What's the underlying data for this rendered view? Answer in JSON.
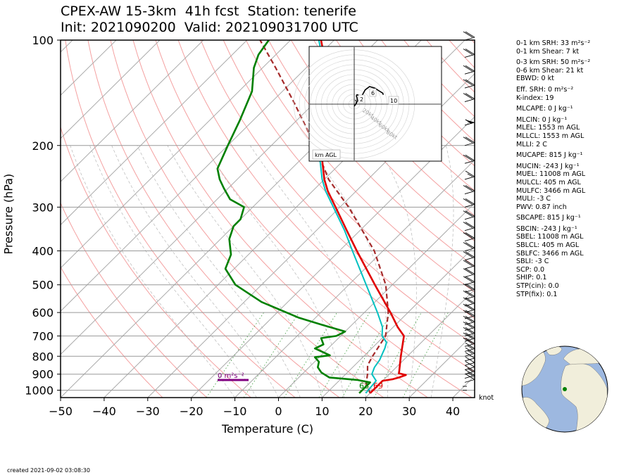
{
  "title_line1": "CPEX-AW 15-3km  41h fcst  Station: tenerife",
  "title_line2": "Init: 2021090200  Valid: 202109031700 UTC",
  "created": "created 2021-09-02 03:08:30",
  "knot_label": "knot",
  "srh_label": "0 m²s⁻²",
  "hodo_label": "km AGL",
  "hodo_rings": [
    "20kt",
    "40kt",
    "60kt",
    "80kt"
  ],
  "hodo_height_marks": [
    "1",
    "2",
    "6",
    "10"
  ],
  "sfc_td_label": "63",
  "sfc_t_label": "69",
  "params": [
    "0-1 km SRH: 33 m²s⁻²",
    "0-1 km Shear: 7 kt",
    "",
    "0-3 km SRH: 50 m²s⁻²",
    "0-6 km Shear: 21 kt",
    "EBWD: 0 kt",
    "",
    "Eff. SRH: 0 m²s⁻²",
    "K-index: 19",
    "",
    "MLCAPE: 0 J kg⁻¹",
    "",
    "MLCIN: 0 J kg⁻¹",
    "MLEL: 1553 m AGL",
    "MLLCL: 1553 m AGL",
    "MLLI: 2 C",
    "",
    "MUCAPE: 815 J kg⁻¹",
    "",
    "MUCIN: -243 J kg⁻¹",
    "MUEL: 11008 m AGL",
    "MULCL: 405 m AGL",
    "MULFC: 3466 m AGL",
    "MULI: -3 C",
    "PWV: 0.87 inch",
    "",
    "SBCAPE: 815 J kg⁻¹",
    "",
    "SBCIN: -243 J kg⁻¹",
    "SBEL: 11008 m AGL",
    "SBLCL: 405 m AGL",
    "SBLFC: 3466 m AGL",
    "SBLI: -3 C",
    "SCP: 0.0",
    "SHIP: 0.1",
    "STP(cin): 0.0",
    "STP(fix): 0.1"
  ],
  "colors": {
    "temperature": "#e00000",
    "dewpoint": "#008000",
    "wetbulb": "#00c0c0",
    "parcel": "#a52a2a",
    "dry_adiabat": "#f4a0a0",
    "srh_bar": "#800080",
    "hodograph": "#000000",
    "globe_ocean": "#9db8e0",
    "globe_land": "#f1eedb",
    "station_dot": "#008000"
  },
  "chart_data": {
    "type": "skew-t",
    "xlabel": "Temperature (C)",
    "ylabel": "Pressure (hPa)",
    "xlim": [
      -50,
      45
    ],
    "ylim": [
      1050,
      100
    ],
    "x_ticks": [
      -50,
      -40,
      -30,
      -20,
      -10,
      0,
      10,
      20,
      30,
      40
    ],
    "y_ticks": [
      100,
      200,
      300,
      400,
      500,
      600,
      700,
      800,
      900,
      1000
    ],
    "y_scale": "log",
    "grid": true,
    "temperature": [
      [
        1020,
        20
      ],
      [
        940,
        20
      ],
      [
        930,
        22
      ],
      [
        920,
        23
      ],
      [
        905,
        24
      ],
      [
        895,
        22
      ],
      [
        880,
        21.5
      ],
      [
        800,
        18.5
      ],
      [
        700,
        14.5
      ],
      [
        660,
        11
      ],
      [
        600,
        6
      ],
      [
        500,
        -4
      ],
      [
        400,
        -16
      ],
      [
        350,
        -23
      ],
      [
        300,
        -31
      ],
      [
        270,
        -36.5
      ],
      [
        250,
        -40
      ],
      [
        220,
        -45
      ],
      [
        200,
        -49
      ],
      [
        175,
        -53
      ],
      [
        150,
        -58
      ],
      [
        125,
        -64
      ],
      [
        110,
        -69
      ],
      [
        100,
        -73
      ]
    ],
    "dewpoint": [
      [
        1020,
        17.5
      ],
      [
        950,
        17.5
      ],
      [
        935,
        14
      ],
      [
        920,
        7
      ],
      [
        890,
        4
      ],
      [
        860,
        2
      ],
      [
        830,
        1
      ],
      [
        805,
        -1
      ],
      [
        795,
        2
      ],
      [
        760,
        -3
      ],
      [
        740,
        -2
      ],
      [
        710,
        -4
      ],
      [
        700,
        -1
      ],
      [
        680,
        0
      ],
      [
        650,
        -7
      ],
      [
        620,
        -14
      ],
      [
        560,
        -26
      ],
      [
        500,
        -36
      ],
      [
        450,
        -42
      ],
      [
        410,
        -44
      ],
      [
        370,
        -48
      ],
      [
        340,
        -50
      ],
      [
        325,
        -50
      ],
      [
        300,
        -52
      ],
      [
        285,
        -57
      ],
      [
        265,
        -61
      ],
      [
        250,
        -64
      ],
      [
        233,
        -67
      ],
      [
        200,
        -70
      ],
      [
        170,
        -73
      ],
      [
        140,
        -77
      ],
      [
        120,
        -82
      ],
      [
        110,
        -84
      ],
      [
        100,
        -85
      ]
    ],
    "wetbulb": [
      [
        1020,
        19
      ],
      [
        940,
        18.5
      ],
      [
        900,
        16
      ],
      [
        860,
        15
      ],
      [
        820,
        14.5
      ],
      [
        780,
        13.5
      ],
      [
        760,
        13
      ],
      [
        730,
        12
      ],
      [
        700,
        9.5
      ],
      [
        660,
        7.5
      ],
      [
        600,
        3
      ],
      [
        500,
        -6
      ],
      [
        400,
        -17
      ],
      [
        350,
        -23.5
      ],
      [
        300,
        -31.5
      ],
      [
        270,
        -37
      ],
      [
        250,
        -40.5
      ],
      [
        220,
        -45.5
      ],
      [
        200,
        -49.5
      ],
      [
        175,
        -53.5
      ],
      [
        150,
        -58.5
      ],
      [
        125,
        -64.5
      ],
      [
        110,
        -69.5
      ],
      [
        100,
        -73.5
      ]
    ],
    "parcel": [
      [
        1020,
        20
      ],
      [
        960,
        17
      ],
      [
        930,
        16
      ],
      [
        900,
        15
      ],
      [
        850,
        13
      ],
      [
        800,
        12
      ],
      [
        700,
        10.3
      ],
      [
        600,
        5.5
      ],
      [
        500,
        -1.5
      ],
      [
        400,
        -12
      ],
      [
        300,
        -28
      ],
      [
        250,
        -39
      ],
      [
        200,
        -50
      ],
      [
        150,
        -65
      ],
      [
        120,
        -77
      ],
      [
        100,
        -87
      ]
    ],
    "hodograph": {
      "u": [
        0,
        2,
        4,
        6,
        5,
        4,
        5,
        9,
        12,
        14,
        13,
        14,
        15,
        20,
        28,
        38,
        44,
        52,
        53
      ],
      "v": [
        -4,
        -1,
        2,
        6,
        12,
        15,
        17,
        16,
        12,
        10,
        10,
        13,
        17,
        26,
        32,
        29,
        25,
        20,
        17
      ],
      "height_marks_km": [
        1,
        2,
        6,
        10
      ]
    },
    "wind_barbs": [
      [
        1000,
        0
      ],
      [
        975,
        1
      ],
      [
        950,
        10
      ],
      [
        925,
        13
      ],
      [
        900,
        17
      ],
      [
        875,
        10
      ],
      [
        850,
        11
      ],
      [
        825,
        12
      ],
      [
        800,
        14
      ],
      [
        775,
        17
      ],
      [
        750,
        21
      ],
      [
        725,
        21
      ],
      [
        700,
        22
      ],
      [
        675,
        22
      ],
      [
        650,
        22
      ],
      [
        625,
        22
      ],
      [
        600,
        21
      ],
      [
        575,
        21
      ],
      [
        550,
        22
      ],
      [
        525,
        21
      ],
      [
        500,
        21
      ],
      [
        475,
        22
      ],
      [
        450,
        22
      ],
      [
        425,
        20
      ],
      [
        400,
        20
      ],
      [
        375,
        19
      ],
      [
        350,
        19
      ],
      [
        325,
        19
      ],
      [
        300,
        19
      ],
      [
        275,
        18
      ],
      [
        250,
        17
      ],
      [
        225,
        20
      ],
      [
        200,
        18
      ],
      [
        175,
        57
      ],
      [
        150,
        21
      ],
      [
        137,
        20
      ],
      [
        125,
        21
      ],
      [
        112,
        21
      ],
      [
        100,
        20
      ]
    ]
  }
}
